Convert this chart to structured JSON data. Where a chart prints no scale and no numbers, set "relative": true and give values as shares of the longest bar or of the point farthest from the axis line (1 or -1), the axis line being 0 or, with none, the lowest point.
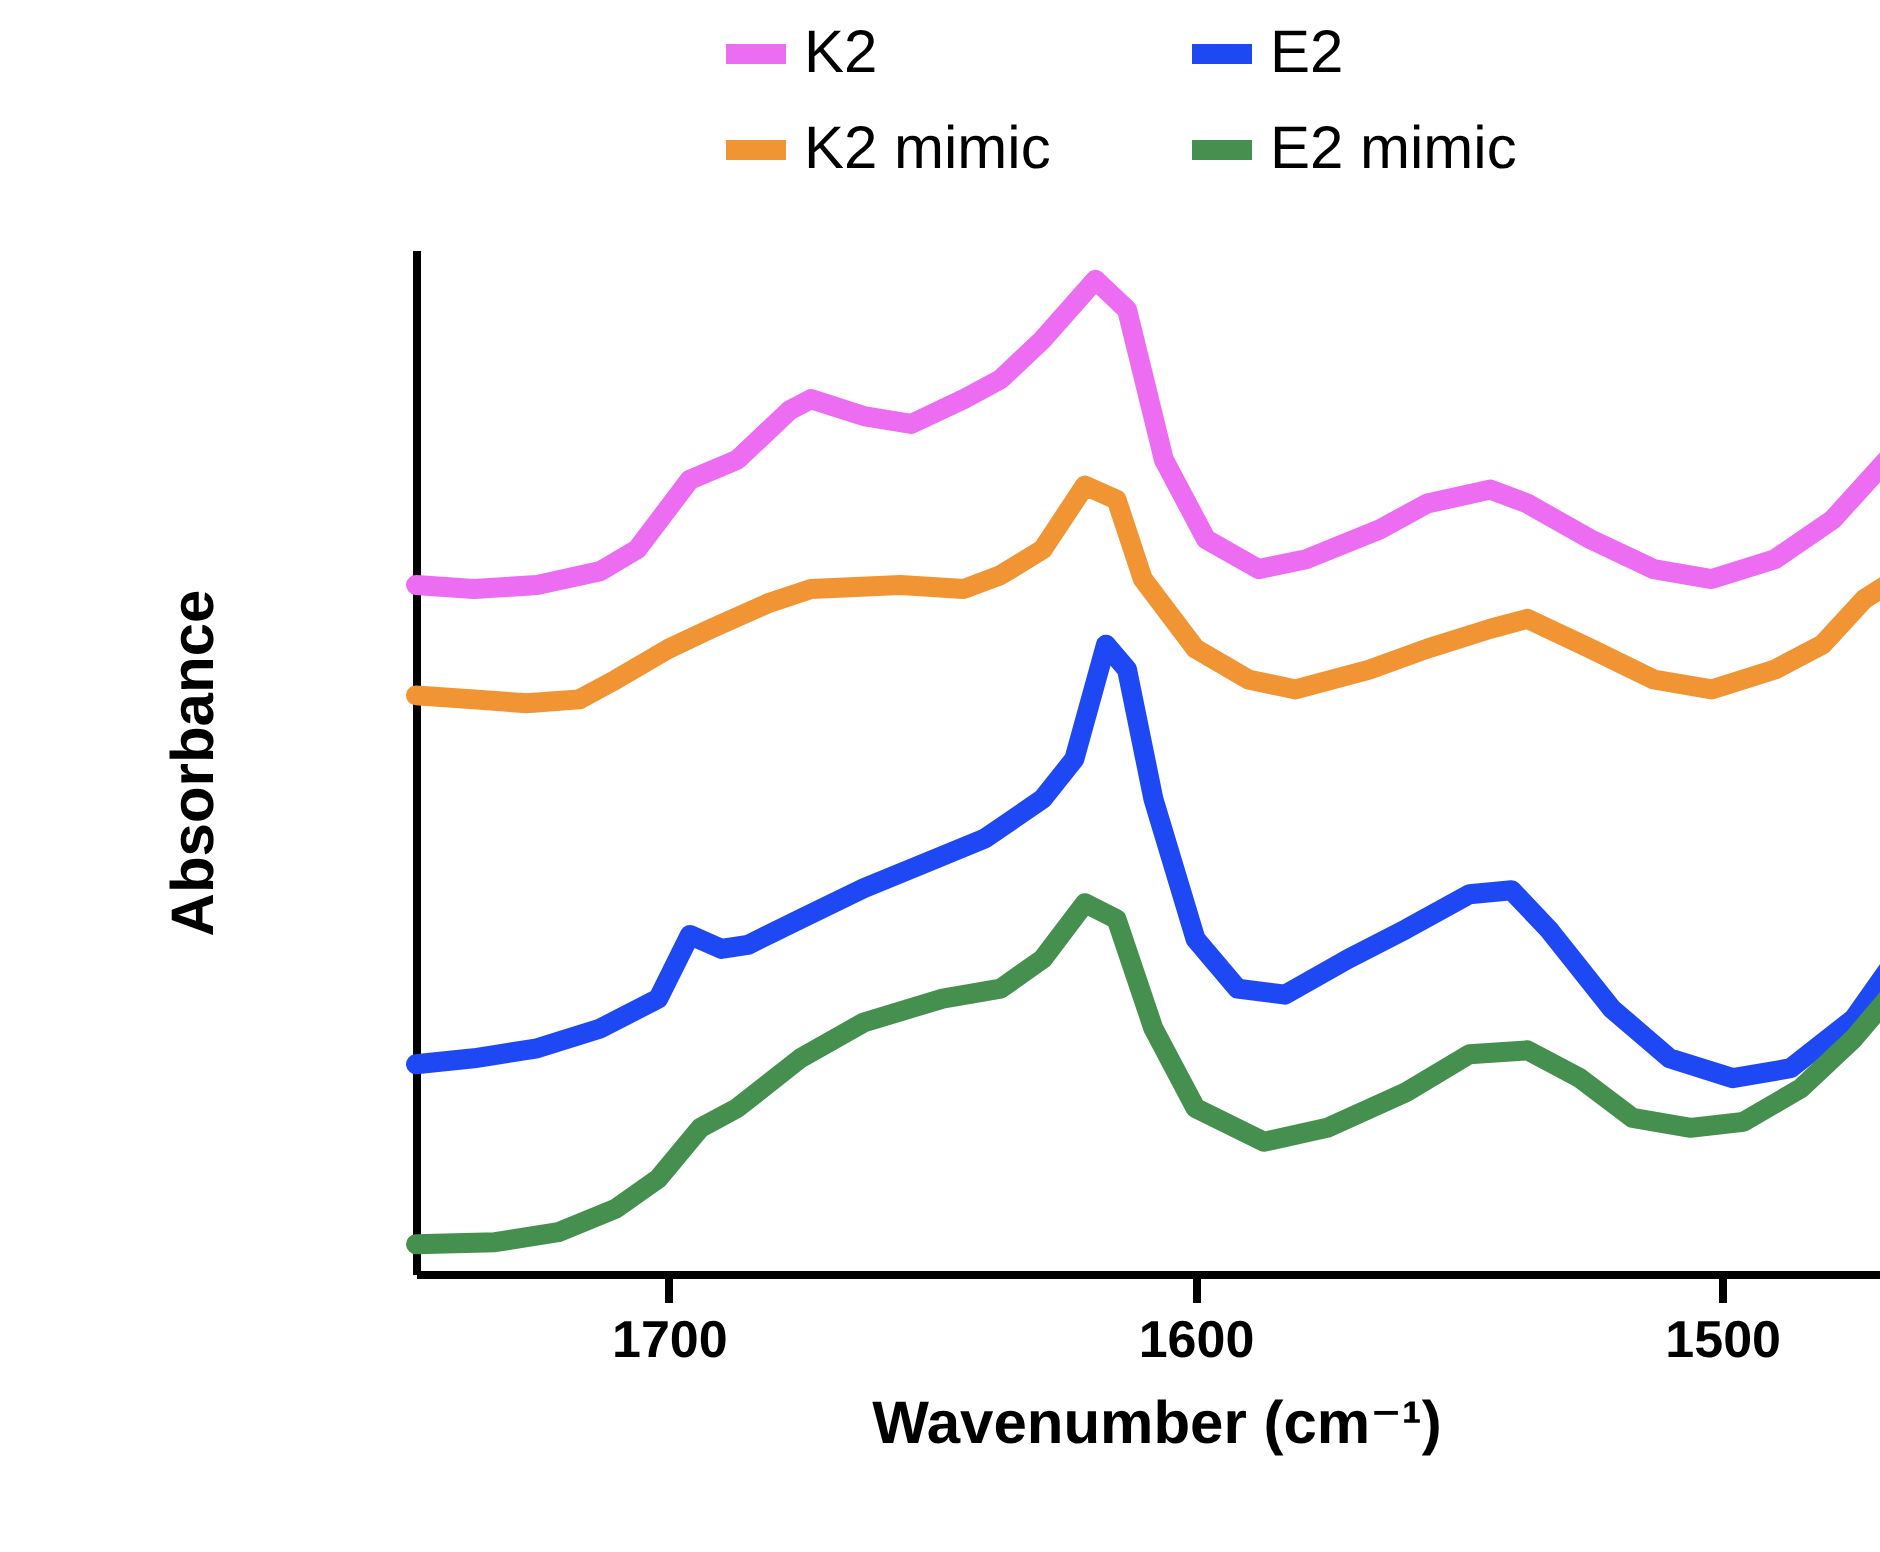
{
  "chart_data": {
    "type": "line",
    "relative": true,
    "xlabel": "Wavenumber (cm⁻¹)",
    "ylabel": "Absorbance",
    "xlim": [
      1748,
      1467
    ],
    "xticks": [
      1700,
      1600,
      1500
    ],
    "legend": "top right",
    "line_style": "solid",
    "grid": false,
    "series": [
      {
        "name": "K2",
        "color": "#ec6cf2",
        "x": [
          1748,
          1737,
          1725,
          1713,
          1706,
          1696,
          1687,
          1677,
          1673,
          1663,
          1654,
          1644,
          1637,
          1629,
          1619,
          1613,
          1606,
          1598,
          1588,
          1579,
          1565,
          1556,
          1544,
          1537,
          1525,
          1513,
          1502,
          1490,
          1479,
          1467
        ],
        "values": [
          0.693,
          0.689,
          0.693,
          0.707,
          0.729,
          0.799,
          0.819,
          0.869,
          0.88,
          0.863,
          0.855,
          0.88,
          0.9,
          0.94,
          1.0,
          0.97,
          0.819,
          0.739,
          0.709,
          0.719,
          0.749,
          0.775,
          0.789,
          0.775,
          0.739,
          0.709,
          0.699,
          0.719,
          0.759,
          0.829
        ]
      },
      {
        "name": "K2 mimic",
        "color": "#f19433",
        "x": [
          1748,
          1737,
          1727,
          1717,
          1710,
          1700,
          1692,
          1681,
          1673,
          1656,
          1644,
          1637,
          1629,
          1621,
          1615,
          1610,
          1600,
          1590,
          1581,
          1567,
          1556,
          1544,
          1537,
          1525,
          1513,
          1502,
          1490,
          1481,
          1473,
          1467
        ],
        "values": [
          0.582,
          0.578,
          0.574,
          0.578,
          0.598,
          0.629,
          0.649,
          0.675,
          0.689,
          0.693,
          0.689,
          0.703,
          0.729,
          0.793,
          0.779,
          0.699,
          0.629,
          0.598,
          0.588,
          0.608,
          0.629,
          0.649,
          0.659,
          0.629,
          0.598,
          0.588,
          0.608,
          0.633,
          0.679,
          0.699
        ]
      },
      {
        "name": "E2",
        "color": "#1f48f5",
        "x": [
          1748,
          1737,
          1725,
          1713,
          1702,
          1696,
          1690,
          1685,
          1675,
          1663,
          1652,
          1640,
          1629,
          1623,
          1617,
          1613,
          1608,
          1600,
          1592,
          1583,
          1571,
          1560,
          1548,
          1540,
          1533,
          1521,
          1510,
          1498,
          1487,
          1475,
          1467
        ],
        "values": [
          0.211,
          0.217,
          0.227,
          0.247,
          0.277,
          0.341,
          0.327,
          0.331,
          0.357,
          0.388,
          0.412,
          0.438,
          0.478,
          0.518,
          0.633,
          0.608,
          0.478,
          0.337,
          0.287,
          0.281,
          0.317,
          0.347,
          0.382,
          0.386,
          0.347,
          0.267,
          0.217,
          0.197,
          0.207,
          0.257,
          0.317
        ]
      },
      {
        "name": "E2 mimic",
        "color": "#45904f",
        "x": [
          1748,
          1733,
          1721,
          1710,
          1702,
          1694,
          1687,
          1675,
          1663,
          1648,
          1637,
          1629,
          1621,
          1615,
          1608,
          1600,
          1587,
          1575,
          1560,
          1548,
          1537,
          1527,
          1517,
          1506,
          1496,
          1485,
          1475,
          1467
        ],
        "values": [
          0.03,
          0.032,
          0.042,
          0.066,
          0.096,
          0.147,
          0.167,
          0.217,
          0.253,
          0.277,
          0.287,
          0.317,
          0.373,
          0.357,
          0.247,
          0.167,
          0.133,
          0.147,
          0.183,
          0.221,
          0.225,
          0.197,
          0.157,
          0.147,
          0.153,
          0.187,
          0.237,
          0.287
        ]
      }
    ]
  }
}
